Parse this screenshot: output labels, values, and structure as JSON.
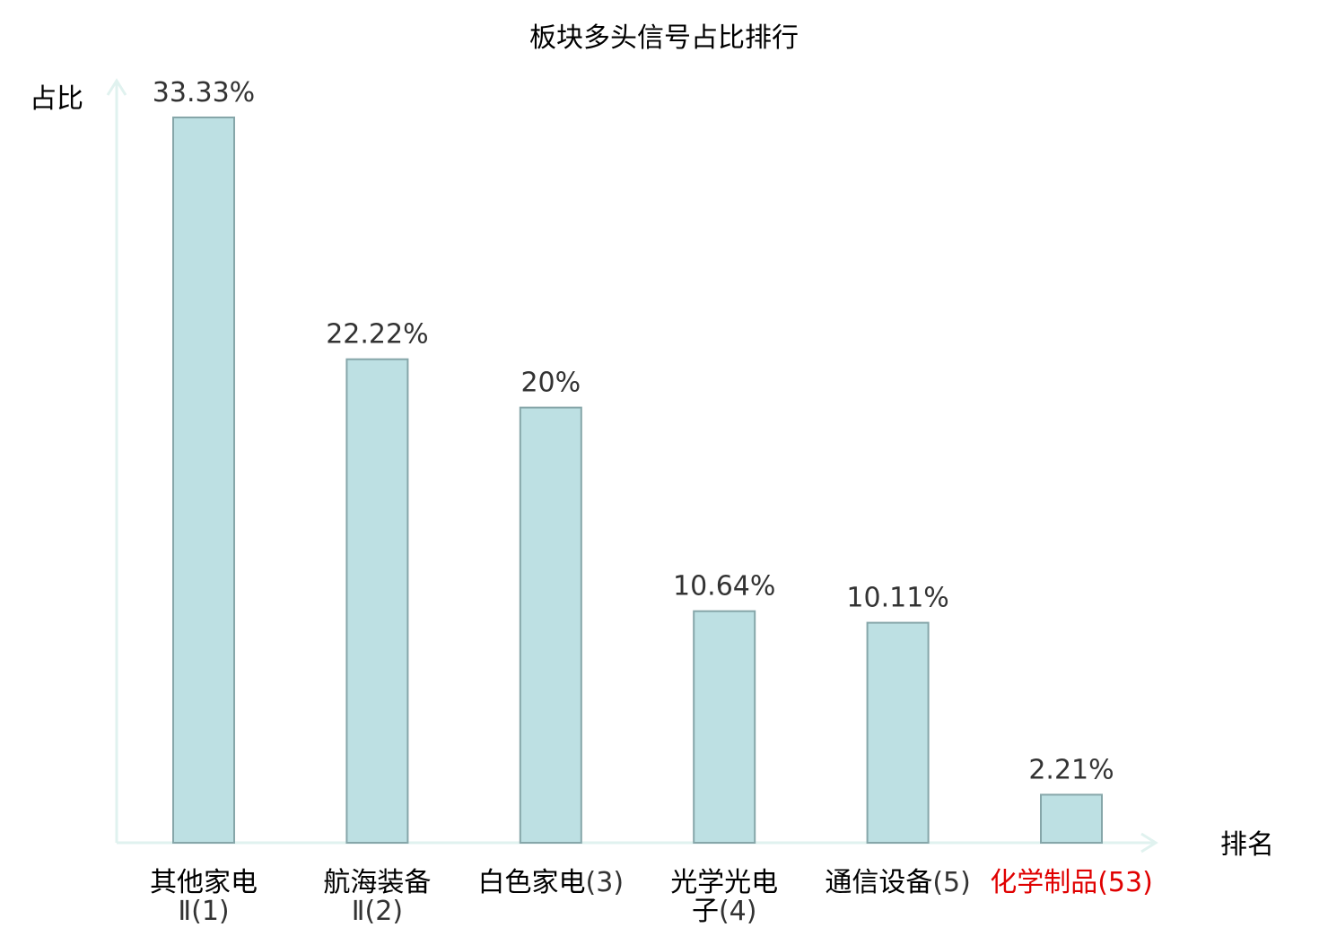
{
  "chart_data": {
    "type": "bar",
    "title": "板块多头信号占比排行",
    "ylabel": "占比",
    "xlabel": "排名",
    "ylim": [
      0,
      33.33
    ],
    "grid": false,
    "categories": [
      {
        "name_lines": [
          "其他家电"
        ],
        "rank_lines": [
          "Ⅱ(1)"
        ],
        "highlight": false
      },
      {
        "name_lines": [
          "航海装备"
        ],
        "rank_lines": [
          "Ⅱ(2)"
        ],
        "highlight": false
      },
      {
        "name_lines": [
          "白色家电"
        ],
        "rank_lines": [
          "(3)"
        ],
        "highlight": false
      },
      {
        "name_lines": [
          "光学光电",
          "子"
        ],
        "rank_lines": [
          "(4)"
        ],
        "highlight": false
      },
      {
        "name_lines": [
          "通信设备"
        ],
        "rank_lines": [
          "(5)"
        ],
        "highlight": false
      },
      {
        "name_lines": [
          "化学制品"
        ],
        "rank_lines": [
          "(53)"
        ],
        "highlight": true
      }
    ],
    "values": [
      33.33,
      22.22,
      20,
      10.64,
      10.11,
      2.21
    ],
    "value_labels": [
      "33.33%",
      "22.22%",
      "20%",
      "10.64%",
      "10.11%",
      "2.21%"
    ],
    "colors": {
      "bar_fill": "#bde0e3",
      "bar_stroke": "#86a6a9",
      "axis": "#e0f2ef",
      "label_text": "#333333",
      "category_name": "#000000",
      "category_rank": "#333333",
      "highlight": "#e00000"
    }
  }
}
